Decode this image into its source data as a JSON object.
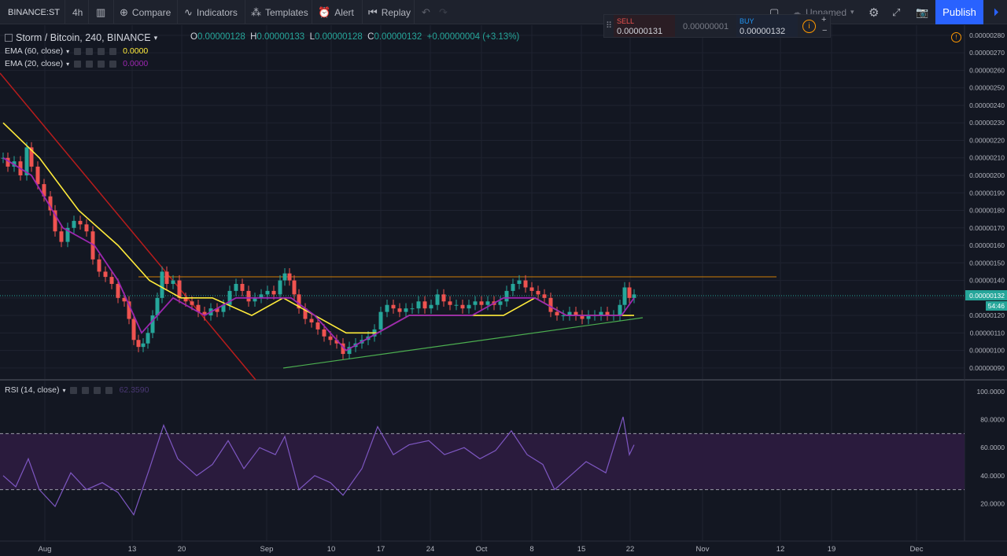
{
  "toolbar": {
    "symbol": "BINANCE:ST",
    "interval": "4h",
    "compare": "Compare",
    "indicators": "Indicators",
    "templates": "Templates",
    "alert": "Alert",
    "replay": "Replay",
    "layout_name": "Unnamed",
    "publish": "Publish"
  },
  "legend": {
    "title": "Storm / Bitcoin, 240, BINANCE",
    "open_label": "O",
    "open": "0.00000128",
    "high_label": "H",
    "high": "0.00000133",
    "low_label": "L",
    "low": "0.00000128",
    "close_label": "C",
    "close": "0.00000132",
    "change": "+0.00000004 (+3.13%)",
    "ema60": {
      "label": "EMA (60, close)",
      "value": "0.0000",
      "color": "#ffeb3b"
    },
    "ema20": {
      "label": "EMA (20, close)",
      "value": "0.0000",
      "color": "#9c27b0"
    }
  },
  "rsi_legend": {
    "label": "RSI (14, close)",
    "value": "62.3590"
  },
  "trade": {
    "sell_label": "SELL",
    "sell_price": "0.00000131",
    "spread": "0.00000001",
    "buy_label": "BUY",
    "buy_price": "0.00000132"
  },
  "price_axis": {
    "ticks": [
      "0.00000280",
      "0.00000270",
      "0.00000260",
      "0.00000250",
      "0.00000240",
      "0.00000230",
      "0.00000220",
      "0.00000210",
      "0.00000200",
      "0.00000190",
      "0.00000180",
      "0.00000170",
      "0.00000160",
      "0.00000150",
      "0.00000140",
      "0.00000130",
      "0.00000120",
      "0.00000110",
      "0.00000100",
      "0.00000090"
    ],
    "current_label": "0.00000132",
    "countdown": "54:46"
  },
  "rsi_axis": {
    "ticks": [
      "100.0000",
      "80.0000",
      "60.0000",
      "40.0000",
      "20.0000"
    ]
  },
  "time_axis": {
    "labels": [
      "Aug",
      "13",
      "20",
      "Sep",
      "10",
      "17",
      "24",
      "Oct",
      "8",
      "15",
      "22",
      "Nov",
      "12",
      "19",
      "Dec"
    ]
  },
  "colors": {
    "background": "#131722",
    "grid": "#1f2330",
    "up": "#26a69a",
    "down": "#ef5350",
    "ema60": "#ffeb3b",
    "ema20": "#9c27b0",
    "rsi": "#7e57c2",
    "accent": "#2962ff"
  },
  "chart_data": {
    "type": "candlestick",
    "price_range": [
      8.5e-07,
      2.84e-06
    ],
    "candles": [
      [
        4,
        2.1e-06
      ],
      [
        10,
        2.05e-06
      ],
      [
        18,
        2.08e-06
      ],
      [
        26,
        2e-06
      ],
      [
        34,
        2.16e-06
      ],
      [
        40,
        2.05e-06
      ],
      [
        48,
        1.95e-06
      ],
      [
        56,
        1.88e-06
      ],
      [
        64,
        1.8e-06
      ],
      [
        70,
        1.68e-06
      ],
      [
        78,
        1.62e-06
      ],
      [
        86,
        1.7e-06
      ],
      [
        94,
        1.74e-06
      ],
      [
        102,
        1.72e-06
      ],
      [
        110,
        1.68e-06
      ],
      [
        118,
        1.52e-06
      ],
      [
        126,
        1.45e-06
      ],
      [
        134,
        1.42e-06
      ],
      [
        142,
        1.38e-06
      ],
      [
        150,
        1.3e-06
      ],
      [
        158,
        1.28e-06
      ],
      [
        164,
        1.18e-06
      ],
      [
        170,
        1.06e-06
      ],
      [
        176,
        1.02e-06
      ],
      [
        182,
        1.04e-06
      ],
      [
        188,
        1.1e-06
      ],
      [
        194,
        1.2e-06
      ],
      [
        200,
        1.3e-06
      ],
      [
        206,
        1.45e-06
      ],
      [
        212,
        1.38e-06
      ],
      [
        220,
        1.4e-06
      ],
      [
        228,
        1.3e-06
      ],
      [
        236,
        1.28e-06
      ],
      [
        244,
        1.26e-06
      ],
      [
        252,
        1.22e-06
      ],
      [
        260,
        1.2e-06
      ],
      [
        268,
        1.24e-06
      ],
      [
        276,
        1.22e-06
      ],
      [
        284,
        1.26e-06
      ],
      [
        292,
        1.34e-06
      ],
      [
        300,
        1.38e-06
      ],
      [
        308,
        1.34e-06
      ],
      [
        316,
        1.28e-06
      ],
      [
        324,
        1.3e-06
      ],
      [
        332,
        1.32e-06
      ],
      [
        340,
        1.34e-06
      ],
      [
        348,
        1.32e-06
      ],
      [
        356,
        1.4e-06
      ],
      [
        362,
        1.44e-06
      ],
      [
        368,
        1.4e-06
      ],
      [
        374,
        1.32e-06
      ],
      [
        380,
        1.24e-06
      ],
      [
        388,
        1.18e-06
      ],
      [
        396,
        1.16e-06
      ],
      [
        404,
        1.12e-06
      ],
      [
        412,
        1.08e-06
      ],
      [
        420,
        1.06e-06
      ],
      [
        428,
        1.04e-06
      ],
      [
        436,
        9.8e-07
      ],
      [
        444,
        1.02e-06
      ],
      [
        452,
        1.04e-06
      ],
      [
        460,
        1.06e-06
      ],
      [
        468,
        1.08e-06
      ],
      [
        476,
        1.12e-06
      ],
      [
        484,
        1.22e-06
      ],
      [
        492,
        1.26e-06
      ],
      [
        500,
        1.24e-06
      ],
      [
        508,
        1.22e-06
      ],
      [
        516,
        1.24e-06
      ],
      [
        524,
        1.24e-06
      ],
      [
        532,
        1.28e-06
      ],
      [
        540,
        1.24e-06
      ],
      [
        548,
        1.26e-06
      ],
      [
        556,
        1.32e-06
      ],
      [
        564,
        1.28e-06
      ],
      [
        572,
        1.26e-06
      ],
      [
        580,
        1.26e-06
      ],
      [
        588,
        1.24e-06
      ],
      [
        596,
        1.26e-06
      ],
      [
        604,
        1.28e-06
      ],
      [
        612,
        1.26e-06
      ],
      [
        620,
        1.28e-06
      ],
      [
        628,
        1.26e-06
      ],
      [
        636,
        1.28e-06
      ],
      [
        644,
        1.34e-06
      ],
      [
        652,
        1.38e-06
      ],
      [
        660,
        1.4e-06
      ],
      [
        668,
        1.36e-06
      ],
      [
        676,
        1.34e-06
      ],
      [
        684,
        1.32e-06
      ],
      [
        692,
        1.3e-06
      ],
      [
        700,
        1.22e-06
      ],
      [
        708,
        1.2e-06
      ],
      [
        716,
        1.2e-06
      ],
      [
        724,
        1.22e-06
      ],
      [
        732,
        1.2e-06
      ],
      [
        740,
        1.18e-06
      ],
      [
        748,
        1.2e-06
      ],
      [
        756,
        1.2e-06
      ],
      [
        764,
        1.22e-06
      ],
      [
        772,
        1.2e-06
      ],
      [
        780,
        1.2e-06
      ],
      [
        788,
        1.26e-06
      ],
      [
        794,
        1.36e-06
      ],
      [
        800,
        1.3e-06
      ],
      [
        806,
        1.32e-06
      ]
    ],
    "ema20": [
      [
        4,
        2.1e-06
      ],
      [
        40,
        2e-06
      ],
      [
        80,
        1.7e-06
      ],
      [
        120,
        1.6e-06
      ],
      [
        150,
        1.4e-06
      ],
      [
        180,
        1.1e-06
      ],
      [
        200,
        1.2e-06
      ],
      [
        220,
        1.3e-06
      ],
      [
        260,
        1.2e-06
      ],
      [
        300,
        1.3e-06
      ],
      [
        340,
        1.3e-06
      ],
      [
        370,
        1.3e-06
      ],
      [
        400,
        1.2e-06
      ],
      [
        440,
        1e-06
      ],
      [
        480,
        1.1e-06
      ],
      [
        520,
        1.2e-06
      ],
      [
        560,
        1.2e-06
      ],
      [
        600,
        1.2e-06
      ],
      [
        640,
        1.3e-06
      ],
      [
        680,
        1.3e-06
      ],
      [
        720,
        1.2e-06
      ],
      [
        760,
        1.2e-06
      ],
      [
        790,
        1.2e-06
      ],
      [
        806,
        1.3e-06
      ]
    ],
    "ema60": [
      [
        4,
        2.3e-06
      ],
      [
        50,
        2.1e-06
      ],
      [
        100,
        1.8e-06
      ],
      [
        150,
        1.6e-06
      ],
      [
        190,
        1.4e-06
      ],
      [
        230,
        1.3e-06
      ],
      [
        270,
        1.3e-06
      ],
      [
        320,
        1.2e-06
      ],
      [
        360,
        1.3e-06
      ],
      [
        400,
        1.2e-06
      ],
      [
        440,
        1.1e-06
      ],
      [
        480,
        1.1e-06
      ],
      [
        520,
        1.2e-06
      ],
      [
        560,
        1.2e-06
      ],
      [
        600,
        1.2e-06
      ],
      [
        640,
        1.2e-06
      ],
      [
        680,
        1.3e-06
      ],
      [
        720,
        1.2e-06
      ],
      [
        760,
        1.2e-06
      ],
      [
        806,
        1.2e-06
      ]
    ],
    "rsi": [
      [
        4,
        40
      ],
      [
        20,
        32
      ],
      [
        36,
        52
      ],
      [
        50,
        30
      ],
      [
        70,
        18
      ],
      [
        90,
        42
      ],
      [
        110,
        30
      ],
      [
        130,
        35
      ],
      [
        150,
        28
      ],
      [
        170,
        12
      ],
      [
        190,
        45
      ],
      [
        208,
        76
      ],
      [
        226,
        52
      ],
      [
        250,
        40
      ],
      [
        270,
        48
      ],
      [
        290,
        65
      ],
      [
        310,
        45
      ],
      [
        330,
        60
      ],
      [
        350,
        55
      ],
      [
        362,
        68
      ],
      [
        380,
        30
      ],
      [
        400,
        40
      ],
      [
        420,
        35
      ],
      [
        436,
        26
      ],
      [
        460,
        45
      ],
      [
        480,
        75
      ],
      [
        500,
        55
      ],
      [
        520,
        62
      ],
      [
        545,
        65
      ],
      [
        565,
        55
      ],
      [
        590,
        60
      ],
      [
        610,
        52
      ],
      [
        630,
        58
      ],
      [
        650,
        72
      ],
      [
        670,
        55
      ],
      [
        690,
        48
      ],
      [
        705,
        30
      ],
      [
        725,
        40
      ],
      [
        745,
        50
      ],
      [
        770,
        42
      ],
      [
        792,
        82
      ],
      [
        800,
        55
      ],
      [
        806,
        62
      ]
    ],
    "rsi_bands": [
      30,
      70
    ]
  }
}
